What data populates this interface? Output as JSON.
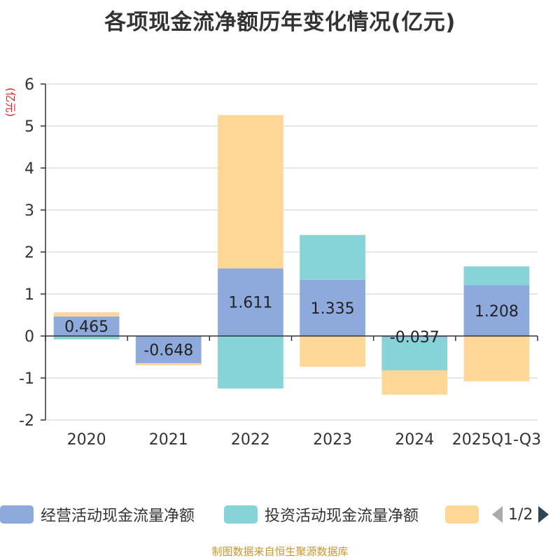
{
  "title": "各项现金流净额历年变化情况(亿元)",
  "source": "制图数据来自恒生聚源数据库",
  "colors": {
    "operating": "#8eaadc",
    "investing": "#86d4d8",
    "financing": "#ffd897",
    "axis": "#333333",
    "grid": "#cccccc",
    "unit_label": "#e02020"
  },
  "legend": {
    "page_text": "1/2",
    "prev_icon": "triangle-left-icon",
    "next_icon": "triangle-right-icon"
  },
  "chart_data": {
    "type": "bar",
    "stacked": true,
    "title": "各项现金流净额历年变化情况(亿元)",
    "ylabel": "(亿元)",
    "ylim": [
      -2,
      6
    ],
    "yticks": [
      -2,
      -1,
      0,
      1,
      2,
      3,
      4,
      5,
      6
    ],
    "grid": true,
    "legend_position": "bottom",
    "categories": [
      "2020",
      "2021",
      "2022",
      "2023",
      "2024",
      "2025Q1-Q3"
    ],
    "series": [
      {
        "name": "经营活动现金流量净额",
        "color_key": "operating",
        "values": [
          0.465,
          -0.648,
          1.611,
          1.335,
          -0.037,
          1.208
        ],
        "data_labels": [
          "0.465",
          "-0.648",
          "1.611",
          "1.335",
          "-0.037",
          "1.208"
        ]
      },
      {
        "name": "投资活动现金流量净额",
        "color_key": "investing",
        "values": [
          -0.08,
          0.0,
          -1.25,
          1.07,
          -0.78,
          0.45
        ]
      },
      {
        "name": "",
        "color_key": "financing",
        "values": [
          0.1,
          -0.05,
          3.65,
          -0.73,
          -0.58,
          -1.08
        ]
      }
    ]
  }
}
